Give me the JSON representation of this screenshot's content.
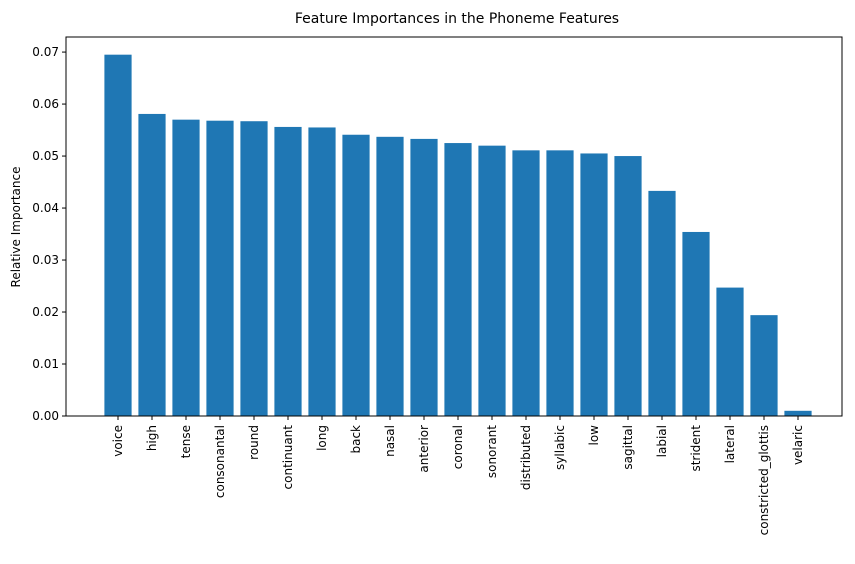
{
  "chart_data": {
    "type": "bar",
    "title": "Feature Importances in the Phoneme Features",
    "xlabel": "",
    "ylabel": "Relative Importance",
    "ylim": [
      0,
      0.0729
    ],
    "yticks": [
      0.0,
      0.01,
      0.02,
      0.03,
      0.04,
      0.05,
      0.06,
      0.07
    ],
    "ytick_labels": [
      "0.00",
      "0.01",
      "0.02",
      "0.03",
      "0.04",
      "0.05",
      "0.06",
      "0.07"
    ],
    "grid": false,
    "bar_color": "#1f77b4",
    "categories": [
      "voice",
      "high",
      "tense",
      "consonantal",
      "round",
      "continuant",
      "long",
      "back",
      "nasal",
      "anterior",
      "coronal",
      "sonorant",
      "distributed",
      "syllabic",
      "low",
      "sagittal",
      "labial",
      "strident",
      "lateral",
      "constricted_glottis",
      "velaric"
    ],
    "values": [
      0.0695,
      0.0581,
      0.057,
      0.0568,
      0.0567,
      0.0556,
      0.0555,
      0.0541,
      0.0537,
      0.0533,
      0.0525,
      0.052,
      0.0511,
      0.0511,
      0.0505,
      0.05,
      0.0433,
      0.0354,
      0.0247,
      0.0194,
      0.001
    ]
  }
}
